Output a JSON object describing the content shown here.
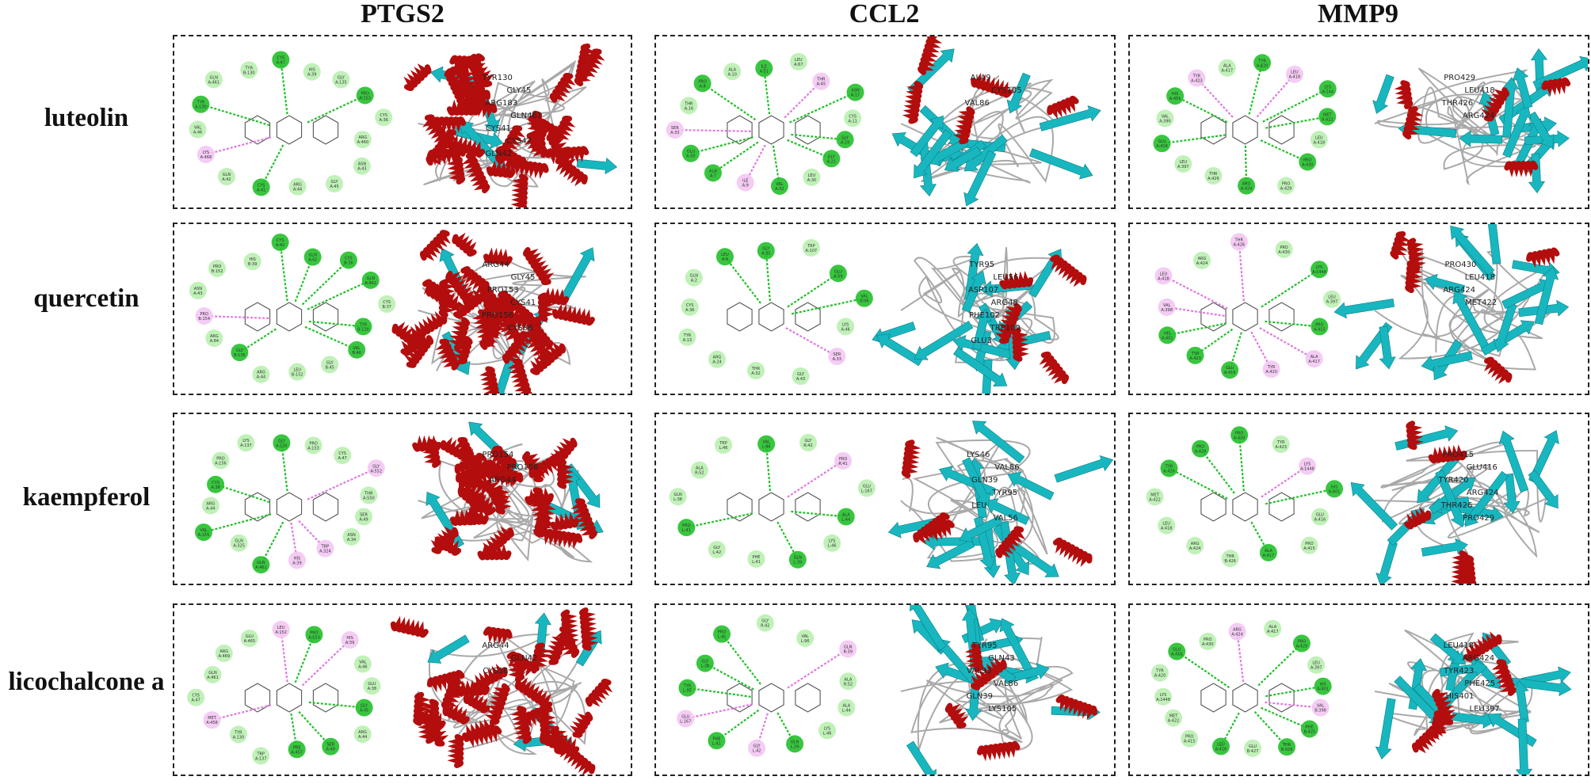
{
  "columns": [
    "PTGS2",
    "CCL2",
    "MMP9"
  ],
  "rows": [
    "luteolin",
    "quercetin",
    "kaempferol",
    "licochalcone a"
  ],
  "colors": {
    "helix": "#b30d0d",
    "sheet": "#18b7c0",
    "coil": "#a9a9a9",
    "hbond": "#22c02a",
    "pi": "#e07ae0",
    "vdw": "#b9f0b0",
    "unfav": "#e04a3a",
    "pi_anion": "#f0a030"
  },
  "panels": [
    {
      "row": "luteolin",
      "col": "PTGS2",
      "residues": [
        "ARG A:460",
        "ASN A:43",
        "GLY A:45",
        "ARG A:44",
        "CYS A:41",
        "GLN A:42",
        "LYS A:468",
        "VAL A:46",
        "TYR A:130",
        "GLN A:461",
        "TYR B:130",
        "CYS A:47",
        "HIS A:39",
        "GLY A:135",
        "PRO A:153",
        "CYS A:36"
      ],
      "labels3d": [
        "TYR130",
        "GLY45",
        "ARG183",
        "GLN461",
        "CYS41",
        "CYS47",
        "GLN42"
      ]
    },
    {
      "row": "luteolin",
      "col": "CCL2",
      "residues": [
        "GLY A:19",
        "GLY A:21",
        "LEU A:30",
        "VAL A:32",
        "ILE A:9",
        "ALA A:7",
        "GLU A:50",
        "SER A:33",
        "THR A:16",
        "PRO A:8",
        "ALA A:10",
        "ILE A:51",
        "LEU A:67",
        "THR A:45",
        "ASN A:17",
        "CYS A:11"
      ],
      "labels3d": [
        "ALA9",
        "CYS105",
        "VAL86"
      ]
    },
    {
      "row": "luteolin",
      "col": "MMP9",
      "residues": [
        "LEU A:418",
        "PRO A:430",
        "PRO A:429",
        "ARG A:424",
        "THR A:426",
        "LEU A:397",
        "GLU A:416",
        "VAL A:390",
        "HIS A:401",
        "TYR A:423",
        "ALA A:417",
        "TYR A:420",
        "LEU A:418",
        "LYS A:144",
        "MET A:422"
      ],
      "labels3d": [
        "PRO429",
        "LEU418",
        "THR426",
        "ARG424"
      ]
    },
    {
      "row": "quercetin",
      "col": "PTGS2",
      "residues": [
        "TYR B:130",
        "VAL B:46",
        "GLY B:45",
        "LEU B:152",
        "ARG A:44",
        "GLY B:136",
        "ARG A:84",
        "PRO B:154",
        "ASN A:43",
        "PRO B:152",
        "HIS B:39",
        "CYS A:42",
        "GLN A:42",
        "CYS B:36",
        "GLN A:462",
        "CYS B:37"
      ],
      "labels3d": [
        "ARG44",
        "GLY45",
        "PRO153",
        "CYS41",
        "PRO156",
        "CYS36"
      ]
    },
    {
      "row": "quercetin",
      "col": "CCL2",
      "residues": [
        "LYS A:46",
        "SER A:33",
        "GLY A:43",
        "THR A:32",
        "ARG A:24",
        "TYR A:13",
        "CYS A:36",
        "GLN A:2",
        "LEU A:4",
        "GLY A:35",
        "TRP A:107",
        "GLU A:59",
        "VAL A:96"
      ],
      "labels3d": [
        "TYR95",
        "LEU56",
        "ASP107",
        "ARG48",
        "PHE102",
        "TRP109",
        "GLU3"
      ]
    },
    {
      "row": "quercetin",
      "col": "MMP9",
      "residues": [
        "PRO A:415",
        "ALA A:417",
        "TYR A:420",
        "GLU A:416",
        "TYR A:423",
        "HIS A:401",
        "VAL A:398",
        "LEU A:418",
        "ARG A:424",
        "THR A:426",
        "PRO A:430",
        "LYS A:1448",
        "LEU A:397"
      ],
      "labels3d": [
        "PRO430",
        "LEU418",
        "ARG424",
        "MET422"
      ]
    },
    {
      "row": "kaempferol",
      "col": "PTGS2",
      "residues": [
        "SER A:49",
        "ASN A:34",
        "TRP A:324",
        "HIS A:39",
        "GLN A:461",
        "GLN A:325",
        "VAL A:155",
        "ARG A:44",
        "CYS A:36",
        "PRO A:156",
        "LYS A:137",
        "GLY A:135",
        "PRO A:153",
        "CYS A:47",
        "GLY A:552",
        "THR A:550"
      ],
      "labels3d": [
        "PRO154",
        "PRO156",
        "ARG44"
      ]
    },
    {
      "row": "kaempferol",
      "col": "CCL2",
      "residues": [
        "ALA L:44",
        "LYS L:46",
        "GLN L:39",
        "PHE L:41",
        "GLY L:42",
        "PRO L:41",
        "GLN L:38",
        "ALA R:52",
        "TRP L:46",
        "VAL L:96",
        "GLY R:42",
        "PRO R:41",
        "GLU L:167"
      ],
      "labels3d": [
        "LYS46",
        "VAL86",
        "GLN39",
        "TYR95",
        "LEU",
        "VAL56"
      ]
    },
    {
      "row": "kaempferol",
      "col": "MMP9",
      "residues": [
        "GLU A:416",
        "PRO A:415",
        "ALA A:417",
        "THR B:426",
        "ARG A:424",
        "LEU A:418",
        "MET A:422",
        "TYR A:420",
        "PRO A:429",
        "PRO A:430",
        "TYR A:423",
        "LYS A:1448",
        "HIS A:401"
      ],
      "labels3d": [
        "PRO415",
        "GLU416",
        "TYR420",
        "ARG424",
        "THR426",
        "PRO429"
      ]
    },
    {
      "row": "licochalcone a",
      "col": "PTGS2",
      "residues": [
        "GLY A:45",
        "ARG A:44",
        "SER A:49",
        "PHE A:457",
        "TRP A:137",
        "TYR A:130",
        "MET A:458",
        "CYS A:47",
        "GLN A:461",
        "ARG A:469",
        "GLU A:465",
        "LEU A:152",
        "PRO A:153",
        "HIS A:39",
        "VAL A:46",
        "GLU A:38"
      ],
      "labels3d": [
        "ARG44",
        "GLN42",
        "CYS36"
      ]
    },
    {
      "row": "licochalcone a",
      "col": "CCL2",
      "residues": [
        "ALA L:44",
        "LYS L:46",
        "GLN L:39",
        "GLY L:42",
        "PHE L:41",
        "GLU L:167",
        "TYR L:95",
        "GLY L:38",
        "PRO L:41",
        "GLY R:42",
        "VAL L:96",
        "GLN R:39",
        "ALA R:52"
      ],
      "labels3d": [
        "TYR95",
        "GLN43",
        "VAL93",
        "VAL86",
        "GLN39",
        "LYS105"
      ]
    },
    {
      "row": "licochalcone a",
      "col": "MMP9",
      "residues": [
        "VAL B:398",
        "PHE B:425",
        "THR B:426",
        "GLU B:427",
        "LEU A:418",
        "PRO A:415",
        "MET A:422",
        "LYS A:1448",
        "TYR A:420",
        "GLU A:416",
        "PRO A:430",
        "ARG A:424",
        "ALA A:417",
        "PRO A:429",
        "LEU A:397",
        "HIS A:401"
      ],
      "labels3d": [
        "LEU418",
        "ARG424",
        "TYR423",
        "PHE425",
        "HIS401",
        "LEU397"
      ]
    }
  ]
}
